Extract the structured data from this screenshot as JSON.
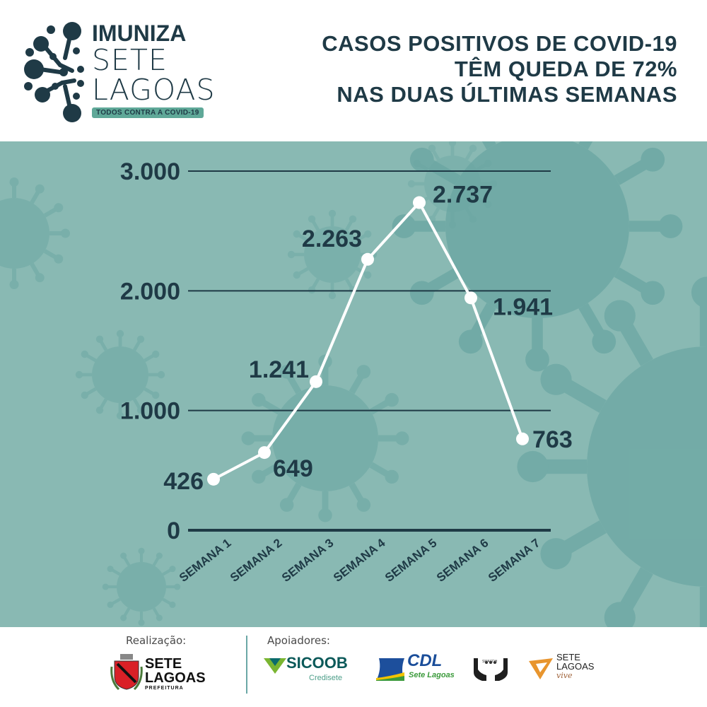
{
  "header": {
    "logo": {
      "title": "IMUNIZA",
      "line2": "SETE",
      "line3": "LAGOAS",
      "badge": "TODOS CONTRA A COVID-19"
    },
    "headline": {
      "line1": "CASOS POSITIVOS DE COVID-19",
      "line2": "TÊM QUEDA DE 72%",
      "line3": "NAS DUAS ÚLTIMAS SEMANAS"
    }
  },
  "colors": {
    "background_teal": "#89b9b3",
    "virus_teal": "#6aa6a2",
    "text_dark": "#1f3a46",
    "line_white": "#ffffff",
    "badge_green": "#5fa898"
  },
  "chart_data": {
    "type": "line",
    "title": "CASOS POSITIVOS DE COVID-19 TÊM QUEDA DE 72% NAS DUAS ÚLTIMAS SEMANAS",
    "xlabel": "",
    "ylabel": "",
    "categories": [
      "SEMANA 1",
      "SEMANA 2",
      "SEMANA 3",
      "SEMANA 4",
      "SEMANA 5",
      "SEMANA 6",
      "SEMANA 7"
    ],
    "series": [
      {
        "name": "Casos positivos",
        "values": [
          426,
          649,
          1241,
          2263,
          2737,
          1941,
          763
        ]
      }
    ],
    "data_labels": [
      "426",
      "649",
      "1.241",
      "2.263",
      "2.737",
      "1.941",
      "763"
    ],
    "y_ticks": [
      0,
      1000,
      2000,
      3000
    ],
    "y_tick_labels": [
      "0",
      "1.000",
      "2.000",
      "3.000"
    ],
    "ylim": [
      0,
      3000
    ],
    "grid": true,
    "legend": "none"
  },
  "footer": {
    "realizacao_label": "Realização:",
    "apoiadores_label": "Apoiadores:",
    "prefeitura": {
      "line1": "SETE",
      "line2": "LAGOAS",
      "line3": "PREFEITURA"
    },
    "sicoob": {
      "name": "SICOOB",
      "sub": "Credisete"
    },
    "cdl": {
      "name": "CDL",
      "sub": "Sete Lagoas"
    },
    "smasdh": {
      "name": "SMASDH"
    },
    "sete_lagoas_vive": {
      "line1": "SETE",
      "line2": "LAGOAS",
      "line3": "vive"
    }
  }
}
